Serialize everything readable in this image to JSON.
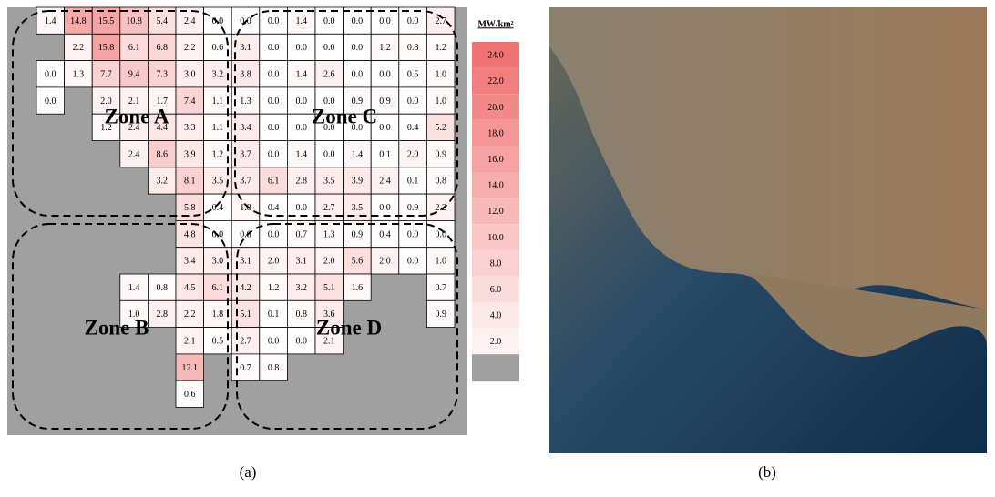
{
  "panel_a": {
    "grid": [
      [
        "1.4",
        "14.8",
        "15.5",
        "10.8",
        "5.4",
        "2.4",
        "0.0",
        "0.0",
        "0.0",
        "1.4",
        "0.0",
        "0.0",
        "0.0",
        "0.0",
        "2.7"
      ],
      [
        null,
        "2.2",
        "15.8",
        "6.1",
        "6.8",
        "2.2",
        "0.6",
        "3.1",
        "0.0",
        "0.0",
        "0.0",
        "0.0",
        "1.2",
        "0.8",
        "1.2"
      ],
      [
        "0.0",
        "1.3",
        "7.7",
        "9.4",
        "7.3",
        "3.0",
        "3.2",
        "3.8",
        "0.0",
        "1.4",
        "2.6",
        "0.0",
        "0.0",
        "0.5",
        "1.0"
      ],
      [
        "0.0",
        null,
        "2.0",
        "2.1",
        "1.7",
        "7.4",
        "1.1",
        "1.3",
        "0.0",
        "0.0",
        "0.0",
        "0.9",
        "0.9",
        "0.0",
        "1.0"
      ],
      [
        null,
        null,
        "1.2",
        "2.4",
        "4.4",
        "3.3",
        "1.1",
        "3.4",
        "0.0",
        "0.0",
        "0.0",
        "0.0",
        "0.0",
        "0.4",
        "5.2"
      ],
      [
        null,
        null,
        null,
        "2.4",
        "8.6",
        "3.9",
        "1.2",
        "3.7",
        "0.0",
        "1.4",
        "0.0",
        "1.4",
        "0.1",
        "2.0",
        "0.9"
      ],
      [
        null,
        null,
        null,
        null,
        "3.2",
        "8.1",
        "3.5",
        "3.7",
        "6.1",
        "2.8",
        "3.5",
        "3.9",
        "2.4",
        "0.1",
        "0.8"
      ],
      [
        null,
        null,
        null,
        null,
        null,
        "5.8",
        "0.4",
        "1.8",
        "0.4",
        "0.0",
        "2.7",
        "3.5",
        "0.0",
        "0.9",
        "2.2"
      ],
      [
        null,
        null,
        null,
        null,
        null,
        "4.8",
        "0.0",
        "0.0",
        "0.0",
        "0.7",
        "1.3",
        "0.9",
        "0.4",
        "0.0",
        "0.0"
      ],
      [
        null,
        null,
        null,
        null,
        null,
        "3.4",
        "3.0",
        "3.1",
        "2.0",
        "3.1",
        "2.0",
        "5.6",
        "2.0",
        "0.0",
        "1.0"
      ],
      [
        null,
        null,
        null,
        "1.4",
        "0.8",
        "4.5",
        "6.1",
        "4.2",
        "1.2",
        "3.2",
        "5.1",
        "1.6",
        null,
        null,
        "0.7"
      ],
      [
        null,
        null,
        null,
        "1.0",
        "2.8",
        "2.2",
        "1.8",
        "5.1",
        "0.1",
        "0.8",
        "3.6",
        null,
        null,
        null,
        "0.9"
      ],
      [
        null,
        null,
        null,
        null,
        null,
        "2.1",
        "0.5",
        "2.7",
        "0.0",
        "0.0",
        "2.1",
        null,
        null,
        null,
        null
      ],
      [
        null,
        null,
        null,
        null,
        null,
        "12.1",
        null,
        "0.7",
        "0.8",
        null,
        null,
        null,
        null,
        null,
        null
      ],
      [
        null,
        null,
        null,
        null,
        null,
        "0.6",
        null,
        null,
        null,
        null,
        null,
        null,
        null,
        null,
        null
      ]
    ],
    "zones": [
      "Zone A",
      "Zone B",
      "Zone C",
      "Zone D"
    ],
    "legend": {
      "title": "MW/km²",
      "levels": [
        "24.0",
        "22.0",
        "20.0",
        "18.0",
        "16.0",
        "14.0",
        "12.0",
        "10.0",
        "8.0",
        "6.0",
        "4.0",
        "2.0"
      ]
    },
    "caption": "(a)"
  },
  "panel_b": {
    "caption": "(b)"
  }
}
